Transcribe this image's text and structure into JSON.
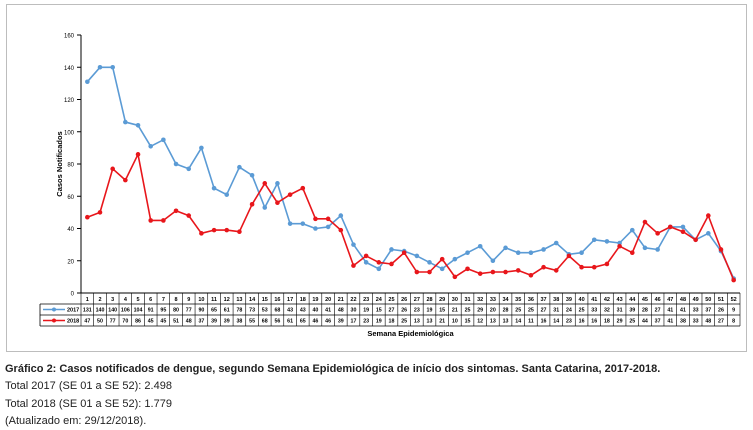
{
  "chart_data": {
    "type": "line",
    "ylabel": "Casos Notificados",
    "xlabel": "Semana Epidemiológica",
    "ylim": [
      0,
      160
    ],
    "yticks": [
      0,
      20,
      40,
      60,
      80,
      100,
      120,
      140,
      160
    ],
    "grid": false,
    "legend": "table-below",
    "categories": [
      1,
      2,
      3,
      4,
      5,
      6,
      7,
      8,
      9,
      10,
      11,
      12,
      13,
      14,
      15,
      16,
      17,
      18,
      19,
      20,
      21,
      22,
      23,
      24,
      25,
      26,
      27,
      28,
      29,
      30,
      31,
      32,
      33,
      34,
      35,
      36,
      37,
      38,
      39,
      40,
      41,
      42,
      43,
      44,
      45,
      46,
      47,
      48,
      49,
      50,
      51,
      52
    ],
    "series": [
      {
        "name": "2017",
        "color": "#5b9bd5",
        "values": [
          131,
          140,
          140,
          106,
          104,
          91,
          95,
          80,
          77,
          90,
          65,
          61,
          78,
          73,
          53,
          68,
          43,
          43,
          40,
          41,
          48,
          30,
          19,
          15,
          27,
          26,
          23,
          19,
          15,
          21,
          25,
          29,
          20,
          28,
          25,
          25,
          27,
          31,
          24,
          25,
          33,
          32,
          31,
          39,
          28,
          27,
          41,
          41,
          33,
          37,
          26,
          9
        ]
      },
      {
        "name": "2018",
        "color": "#e8161b",
        "values": [
          47,
          50,
          77,
          70,
          86,
          45,
          45,
          51,
          48,
          37,
          39,
          39,
          38,
          55,
          68,
          56,
          61,
          65,
          46,
          46,
          39,
          17,
          23,
          19,
          18,
          25,
          13,
          13,
          21,
          10,
          15,
          12,
          13,
          13,
          14,
          11,
          16,
          14,
          23,
          16,
          16,
          18,
          29,
          25,
          44,
          37,
          41,
          38,
          33,
          48,
          27,
          8
        ]
      }
    ]
  },
  "caption": {
    "title": "Gráfico 2: Casos notificados de dengue, segundo Semana Epidemiológica de início dos sintomas. Santa Catarina, 2017-2018.",
    "line1": "Total 2017 (SE 01 a SE 52): 2.498",
    "line2": "Total 2018 (SE 01 a SE 52): 1.779",
    "line3": "(Atualizado em: 29/12/2018)."
  }
}
